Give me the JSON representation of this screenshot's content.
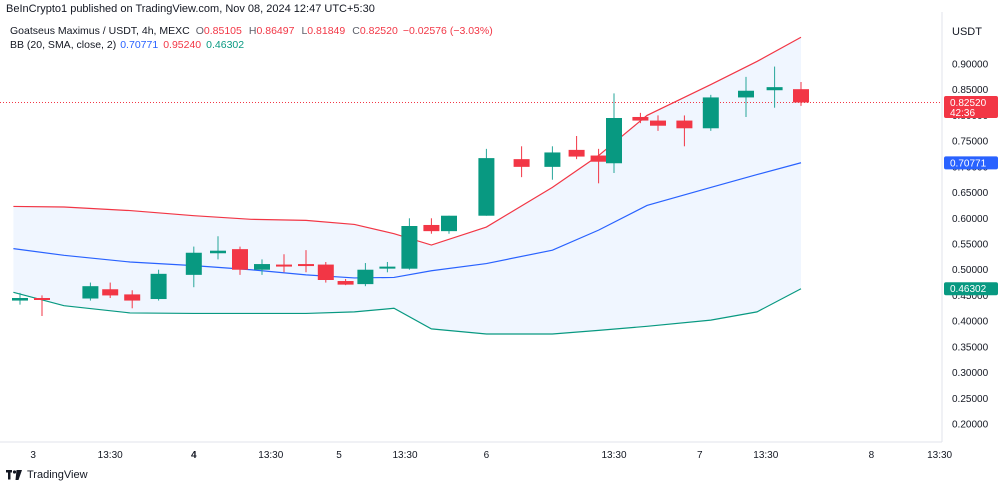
{
  "header": {
    "publisher_line": "BeInCrypto1 published on TradingView.com, Nov 08, 2024 12:47 UTC+5:30"
  },
  "legend": {
    "symbol_line": "Goatseus Maximus / USDT, 4h, MEXC",
    "ohlc": [
      {
        "label": "O",
        "value": "0.85105"
      },
      {
        "label": "H",
        "value": "0.86497"
      },
      {
        "label": "L",
        "value": "0.81849"
      },
      {
        "label": "C",
        "value": "0.82520"
      },
      {
        "label": "",
        "value": "−0.02576 (−3.03%)"
      }
    ],
    "indicator_name": "BB (20, SMA, close, 2)",
    "indicator_values": [
      "0.70771",
      "0.95240",
      "0.46302"
    ]
  },
  "currency": "USDT",
  "brand": {
    "name": "TradingView"
  },
  "colors": {
    "up": "#26a69a",
    "up_body": "#089981",
    "down": "#f23645",
    "basis": "#2962ff",
    "upper": "#f23645",
    "lower": "#089981",
    "fill": "#f0f6ff"
  },
  "chart_data": {
    "type": "candlestick",
    "ylim": [
      0.17,
      0.96
    ],
    "y_ticks": [
      "0.90000",
      "0.85000",
      "0.80000",
      "0.75000",
      "0.70000",
      "0.65000",
      "0.60000",
      "0.55000",
      "0.50000",
      "0.45000",
      "0.40000",
      "0.35000",
      "0.30000",
      "0.25000",
      "0.20000"
    ],
    "x_ticks": [
      {
        "label": "3",
        "bold": false,
        "bar": 0.6
      },
      {
        "label": "13:30",
        "bold": false,
        "bar": 4.1
      },
      {
        "label": "4",
        "bold": true,
        "bar": 7.9
      },
      {
        "label": "13:30",
        "bold": false,
        "bar": 11.4
      },
      {
        "label": "5",
        "bold": false,
        "bar": 14.5
      },
      {
        "label": "13:30",
        "bold": false,
        "bar": 17.5
      },
      {
        "label": "6",
        "bold": false,
        "bar": 21.2
      },
      {
        "label": "13:30",
        "bold": false,
        "bar": 27.0
      },
      {
        "label": "7",
        "bold": false,
        "bar": 30.9
      },
      {
        "label": "13:30",
        "bold": false,
        "bar": 33.9
      },
      {
        "label": "8",
        "bold": false,
        "bar": 38.7
      },
      {
        "label": "13:30",
        "bold": false,
        "bar": 41.8
      }
    ],
    "candles": [
      {
        "o": 0.44,
        "h": 0.455,
        "l": 0.432,
        "c": 0.445
      },
      {
        "o": 0.445,
        "h": 0.45,
        "l": 0.41,
        "c": 0.444
      },
      {
        "o": 0.444,
        "h": 0.475,
        "l": 0.44,
        "c": 0.468
      },
      {
        "o": 0.462,
        "h": 0.475,
        "l": 0.445,
        "c": 0.45
      },
      {
        "o": 0.452,
        "h": 0.46,
        "l": 0.425,
        "c": 0.44
      },
      {
        "o": 0.443,
        "h": 0.5,
        "l": 0.44,
        "c": 0.492
      },
      {
        "o": 0.49,
        "h": 0.545,
        "l": 0.466,
        "c": 0.533
      },
      {
        "o": 0.532,
        "h": 0.565,
        "l": 0.52,
        "c": 0.537
      },
      {
        "o": 0.54,
        "h": 0.545,
        "l": 0.49,
        "c": 0.5
      },
      {
        "o": 0.5,
        "h": 0.52,
        "l": 0.49,
        "c": 0.511
      },
      {
        "o": 0.51,
        "h": 0.53,
        "l": 0.495,
        "c": 0.508
      },
      {
        "o": 0.511,
        "h": 0.538,
        "l": 0.495,
        "c": 0.51
      },
      {
        "o": 0.51,
        "h": 0.515,
        "l": 0.475,
        "c": 0.48
      },
      {
        "o": 0.478,
        "h": 0.482,
        "l": 0.47,
        "c": 0.471
      },
      {
        "o": 0.472,
        "h": 0.513,
        "l": 0.468,
        "c": 0.5
      },
      {
        "o": 0.503,
        "h": 0.515,
        "l": 0.495,
        "c": 0.506
      },
      {
        "o": 0.502,
        "h": 0.6,
        "l": 0.5,
        "c": 0.585
      },
      {
        "o": 0.587,
        "h": 0.6,
        "l": 0.57,
        "c": 0.575
      },
      {
        "o": 0.575,
        "h": 0.605,
        "l": 0.57,
        "c": 0.605
      },
      {
        "o": 0.605,
        "h": 0.735,
        "l": 0.605,
        "c": 0.717
      },
      {
        "o": 0.715,
        "h": 0.74,
        "l": 0.68,
        "c": 0.7
      },
      {
        "o": 0.7,
        "h": 0.74,
        "l": 0.675,
        "c": 0.728
      },
      {
        "o": 0.733,
        "h": 0.76,
        "l": 0.715,
        "c": 0.72
      },
      {
        "o": 0.722,
        "h": 0.735,
        "l": 0.668,
        "c": 0.71
      },
      {
        "o": 0.707,
        "h": 0.843,
        "l": 0.688,
        "c": 0.795
      },
      {
        "o": 0.797,
        "h": 0.805,
        "l": 0.785,
        "c": 0.79
      },
      {
        "o": 0.79,
        "h": 0.8,
        "l": 0.77,
        "c": 0.78
      },
      {
        "o": 0.79,
        "h": 0.8,
        "l": 0.74,
        "c": 0.775
      },
      {
        "o": 0.775,
        "h": 0.84,
        "l": 0.77,
        "c": 0.835
      },
      {
        "o": 0.835,
        "h": 0.875,
        "l": 0.797,
        "c": 0.848
      },
      {
        "o": 0.849,
        "h": 0.895,
        "l": 0.815,
        "c": 0.855
      },
      {
        "o": 0.85105,
        "h": 0.86497,
        "l": 0.81849,
        "c": 0.8252
      }
    ],
    "candle_positions": [
      0.0,
      1.0,
      3.2,
      4.1,
      5.1,
      6.3,
      7.9,
      9.0,
      10.0,
      11.0,
      12.0,
      13.0,
      13.9,
      14.8,
      15.7,
      16.7,
      17.7,
      18.7,
      19.5,
      21.2,
      22.8,
      24.2,
      25.3,
      26.3,
      27.0,
      28.2,
      29.0,
      30.2,
      31.4,
      33.0,
      34.3,
      35.5
    ],
    "bb_upper": [
      0.623,
      0.622,
      0.615,
      0.605,
      0.598,
      0.596,
      0.588,
      0.57,
      0.548,
      0.583,
      0.66,
      0.722,
      0.8,
      0.86,
      0.905,
      0.952
    ],
    "bb_basis": [
      0.541,
      0.528,
      0.515,
      0.508,
      0.5,
      0.49,
      0.484,
      0.485,
      0.498,
      0.512,
      0.538,
      0.577,
      0.625,
      0.66,
      0.685,
      0.708
    ],
    "bb_lower": [
      0.456,
      0.43,
      0.416,
      0.415,
      0.415,
      0.415,
      0.418,
      0.425,
      0.385,
      0.375,
      0.375,
      0.382,
      0.39,
      0.402,
      0.418,
      0.463
    ],
    "bb_x": [
      -0.3,
      2.0,
      5.0,
      7.9,
      10.5,
      13.0,
      15.2,
      17.0,
      18.7,
      21.2,
      24.2,
      26.3,
      28.5,
      31.4,
      33.5,
      35.5
    ],
    "current_price": {
      "value": "0.82520",
      "countdown": "42:36"
    },
    "bb_labels": {
      "basis": "0.70771",
      "lower": "0.46302"
    }
  }
}
